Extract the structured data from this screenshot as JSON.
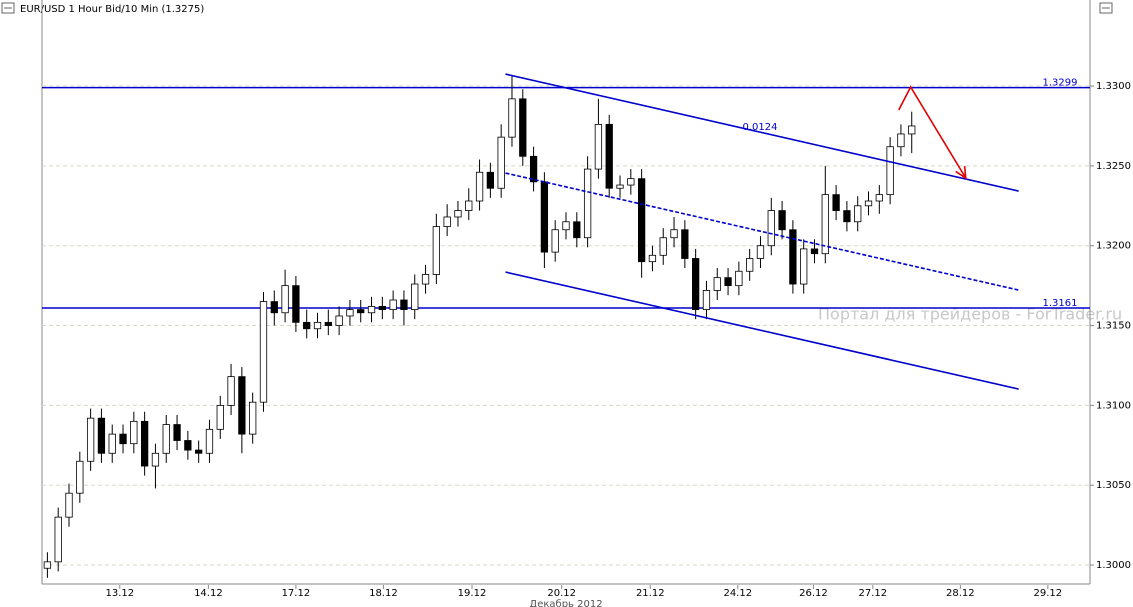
{
  "chart_data": {
    "type": "candlestick",
    "title": "EUR/USD 1 Hour Bid/10 Min (1.3275)",
    "watermark": "Портал для трейдеров - ForTrader.ru",
    "x_axis_label": "Декабрь 2012",
    "ylim": [
      1.29875,
      1.33539
    ],
    "yticks": [
      {
        "value": 1.3,
        "label": "1.3000"
      },
      {
        "value": 1.305,
        "label": "1.3050"
      },
      {
        "value": 1.31,
        "label": "1.3100"
      },
      {
        "value": 1.315,
        "label": "1.3150"
      },
      {
        "value": 1.32,
        "label": "1.3200"
      },
      {
        "value": 1.325,
        "label": "1.3250"
      },
      {
        "value": 1.33,
        "label": "1.3300"
      }
    ],
    "xlim": [
      0,
      97
    ],
    "xticks": [
      {
        "value": 7.2,
        "label": "13.12"
      },
      {
        "value": 15.4,
        "label": "14.12"
      },
      {
        "value": 23.5,
        "label": "17.12"
      },
      {
        "value": 31.6,
        "label": "18.12"
      },
      {
        "value": 39.8,
        "label": "19.12"
      },
      {
        "value": 48.1,
        "label": "20.12"
      },
      {
        "value": 56.3,
        "label": "21.12"
      },
      {
        "value": 64.4,
        "label": "24.12"
      },
      {
        "value": 71.4,
        "label": "26.12"
      },
      {
        "value": 76.9,
        "label": "27.12"
      },
      {
        "value": 85,
        "label": "28.12"
      },
      {
        "value": 93.1,
        "label": "29.12"
      }
    ],
    "grid": true,
    "up_color": "#ffffff",
    "down_color": "#000000",
    "candles": [
      [
        1.2998,
        1.3008,
        1.2992,
        1.3002
      ],
      [
        1.3002,
        1.3036,
        1.2996,
        1.303
      ],
      [
        1.303,
        1.3051,
        1.3024,
        1.3045
      ],
      [
        1.3045,
        1.3071,
        1.3039,
        1.3065
      ],
      [
        1.3065,
        1.3098,
        1.3059,
        1.3092
      ],
      [
        1.3092,
        1.3098,
        1.3064,
        1.307
      ],
      [
        1.307,
        1.3088,
        1.3064,
        1.3082
      ],
      [
        1.3082,
        1.3088,
        1.307,
        1.3076
      ],
      [
        1.3076,
        1.3096,
        1.307,
        1.309
      ],
      [
        1.309,
        1.3096,
        1.3056,
        1.3062
      ],
      [
        1.3062,
        1.3076,
        1.3048,
        1.307
      ],
      [
        1.307,
        1.3094,
        1.3064,
        1.3088
      ],
      [
        1.3088,
        1.3094,
        1.3072,
        1.3078
      ],
      [
        1.3078,
        1.3084,
        1.3066,
        1.3072
      ],
      [
        1.3072,
        1.3078,
        1.3064,
        1.307
      ],
      [
        1.307,
        1.3091,
        1.3064,
        1.3085
      ],
      [
        1.3085,
        1.3106,
        1.3079,
        1.31
      ],
      [
        1.31,
        1.3126,
        1.3094,
        1.3118
      ],
      [
        1.3118,
        1.3124,
        1.307,
        1.3082
      ],
      [
        1.3082,
        1.3108,
        1.3076,
        1.3102
      ],
      [
        1.3102,
        1.3171,
        1.3096,
        1.3165
      ],
      [
        1.3165,
        1.3172,
        1.315,
        1.3158
      ],
      [
        1.3158,
        1.3185,
        1.3152,
        1.3175
      ],
      [
        1.3175,
        1.3181,
        1.3146,
        1.3152
      ],
      [
        1.3152,
        1.316,
        1.3142,
        1.3148
      ],
      [
        1.3148,
        1.3158,
        1.3142,
        1.3152
      ],
      [
        1.3152,
        1.316,
        1.3144,
        1.315
      ],
      [
        1.315,
        1.3162,
        1.3144,
        1.3156
      ],
      [
        1.3156,
        1.3166,
        1.315,
        1.316
      ],
      [
        1.316,
        1.3166,
        1.3152,
        1.3158
      ],
      [
        1.3158,
        1.3168,
        1.3152,
        1.3162
      ],
      [
        1.3162,
        1.3168,
        1.3154,
        1.316
      ],
      [
        1.316,
        1.3172,
        1.3154,
        1.3166
      ],
      [
        1.3166,
        1.3172,
        1.315,
        1.316
      ],
      [
        1.316,
        1.3182,
        1.3154,
        1.3176
      ],
      [
        1.3176,
        1.3188,
        1.317,
        1.3182
      ],
      [
        1.3182,
        1.322,
        1.3176,
        1.3212
      ],
      [
        1.3212,
        1.3226,
        1.3206,
        1.3218
      ],
      [
        1.3218,
        1.3228,
        1.3212,
        1.3222
      ],
      [
        1.3222,
        1.3236,
        1.3216,
        1.3228
      ],
      [
        1.3228,
        1.3254,
        1.3222,
        1.3246
      ],
      [
        1.3246,
        1.3252,
        1.323,
        1.3236
      ],
      [
        1.3236,
        1.3276,
        1.323,
        1.3268
      ],
      [
        1.3268,
        1.3306,
        1.3262,
        1.3292
      ],
      [
        1.3292,
        1.3298,
        1.325,
        1.3256
      ],
      [
        1.3256,
        1.3262,
        1.3234,
        1.324
      ],
      [
        1.324,
        1.3246,
        1.3186,
        1.3196
      ],
      [
        1.3196,
        1.3216,
        1.319,
        1.321
      ],
      [
        1.321,
        1.3221,
        1.3204,
        1.3215
      ],
      [
        1.3215,
        1.3221,
        1.3199,
        1.3205
      ],
      [
        1.3205,
        1.3256,
        1.3199,
        1.3248
      ],
      [
        1.3248,
        1.3292,
        1.3242,
        1.3276
      ],
      [
        1.3276,
        1.3282,
        1.323,
        1.3236
      ],
      [
        1.3236,
        1.3244,
        1.323,
        1.3238
      ],
      [
        1.3238,
        1.3248,
        1.3232,
        1.3242
      ],
      [
        1.3242,
        1.3248,
        1.318,
        1.319
      ],
      [
        1.319,
        1.32,
        1.3184,
        1.3194
      ],
      [
        1.3194,
        1.3211,
        1.3188,
        1.3205
      ],
      [
        1.3205,
        1.3218,
        1.3199,
        1.321
      ],
      [
        1.321,
        1.3216,
        1.3186,
        1.3192
      ],
      [
        1.3192,
        1.3198,
        1.3154,
        1.316
      ],
      [
        1.316,
        1.3178,
        1.3154,
        1.3172
      ],
      [
        1.3172,
        1.3186,
        1.3166,
        1.318
      ],
      [
        1.318,
        1.3186,
        1.3169,
        1.3175
      ],
      [
        1.3175,
        1.319,
        1.3169,
        1.3184
      ],
      [
        1.3184,
        1.3198,
        1.3178,
        1.3192
      ],
      [
        1.3192,
        1.3206,
        1.3186,
        1.32
      ],
      [
        1.32,
        1.323,
        1.3194,
        1.3222
      ],
      [
        1.3222,
        1.3228,
        1.3204,
        1.321
      ],
      [
        1.321,
        1.3216,
        1.317,
        1.3176
      ],
      [
        1.3176,
        1.3204,
        1.317,
        1.3198
      ],
      [
        1.3198,
        1.3204,
        1.3189,
        1.3195
      ],
      [
        1.3195,
        1.325,
        1.3189,
        1.3232
      ],
      [
        1.3232,
        1.3238,
        1.3216,
        1.3222
      ],
      [
        1.3222,
        1.3228,
        1.3209,
        1.3215
      ],
      [
        1.3215,
        1.3231,
        1.3209,
        1.3225
      ],
      [
        1.3225,
        1.3234,
        1.3219,
        1.3228
      ],
      [
        1.3228,
        1.3238,
        1.322,
        1.3232
      ],
      [
        1.3232,
        1.3268,
        1.3226,
        1.3262
      ],
      [
        1.3262,
        1.3276,
        1.3256,
        1.327
      ],
      [
        1.327,
        1.3284,
        1.3258,
        1.3275
      ]
    ],
    "levels": [
      1.3299,
      1.3161
    ],
    "level_color": "#0000cc",
    "channel_label": "0.0124",
    "trendlines": [
      {
        "color": "#0000cc",
        "style": "solid",
        "x": [
          42.9,
          90.4
        ],
        "y": [
          1.33075,
          1.32342
        ]
      },
      {
        "color": "#0000cc",
        "style": "dashed",
        "x": [
          42.9,
          90.4
        ],
        "y": [
          1.32455,
          1.31722
        ]
      },
      {
        "color": "#0000cc",
        "style": "solid",
        "x": [
          42.9,
          90.4
        ],
        "y": [
          1.31835,
          1.31102
        ]
      }
    ],
    "arrow": {
      "color": "#e00000",
      "x": [
        79.3,
        80.4,
        85.5
      ],
      "y": [
        1.3285,
        1.32994,
        1.32424
      ]
    }
  }
}
